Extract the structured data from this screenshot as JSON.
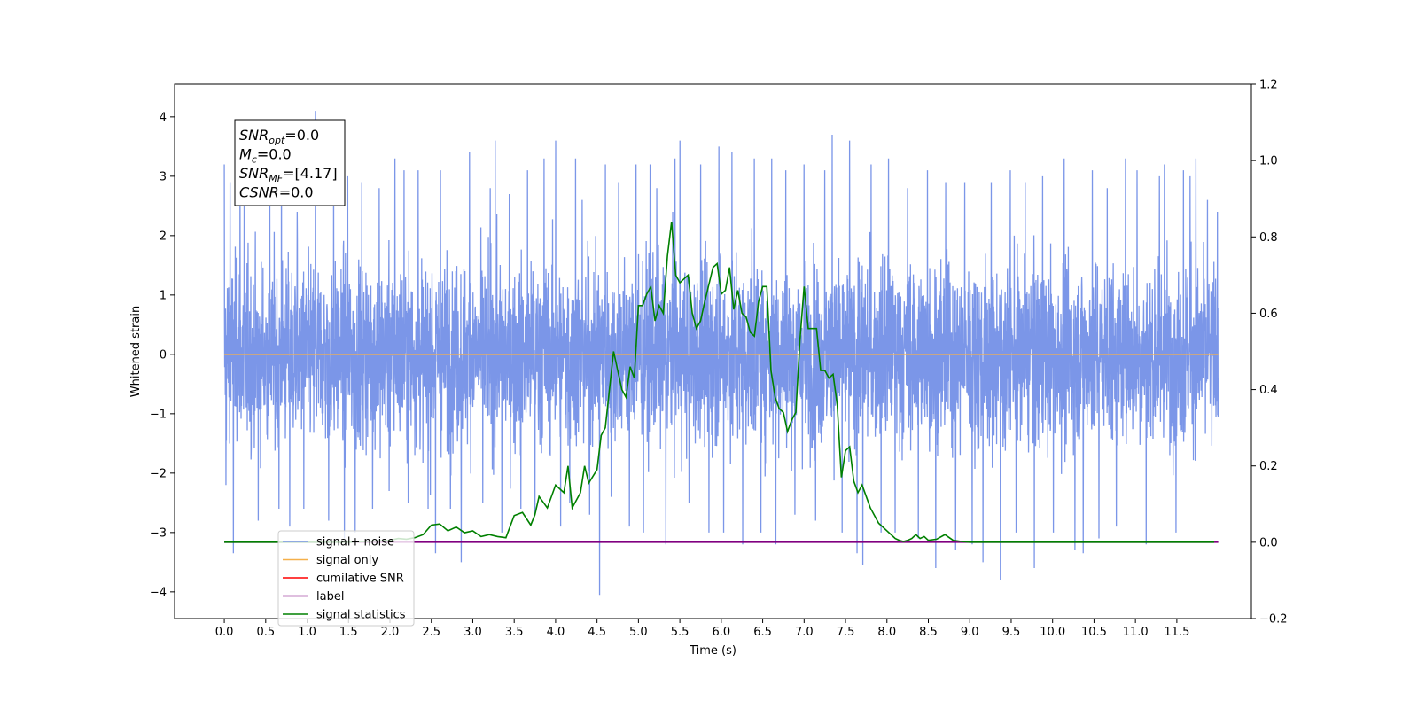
{
  "chart_data": {
    "type": "line",
    "xlabel": "Time (s)",
    "ylabel": "Whitened strain",
    "xlim": [
      -0.6,
      12.4
    ],
    "ylim": [
      -4.45,
      4.55
    ],
    "ylim_right": [
      -0.2,
      1.2
    ],
    "x_ticks": [
      0.0,
      0.5,
      1.0,
      1.5,
      2.0,
      2.5,
      3.0,
      3.5,
      4.0,
      4.5,
      5.0,
      5.5,
      6.0,
      6.5,
      7.0,
      7.5,
      8.0,
      8.5,
      9.0,
      9.5,
      10.0,
      10.5,
      11.0,
      11.5
    ],
    "x_tick_labels": [
      "0.0",
      "0.5",
      "1.0",
      "1.5",
      "2.0",
      "2.5",
      "3.0",
      "3.5",
      "4.0",
      "4.5",
      "5.0",
      "5.5",
      "6.0",
      "6.5",
      "7.0",
      "7.5",
      "8.0",
      "8.5",
      "9.0",
      "9.5",
      "10.0",
      "10.5",
      "11.0",
      "11.5"
    ],
    "y_ticks": [
      4,
      3,
      2,
      1,
      0,
      -1,
      -2,
      -3,
      -4
    ],
    "y_tick_labels": [
      "4",
      "3",
      "2",
      "1",
      "0",
      "−1",
      "−2",
      "−3",
      "−4"
    ],
    "y_ticks_right": [
      1.2,
      1.0,
      0.8,
      0.6,
      0.4,
      0.2,
      0.0,
      -0.2
    ],
    "y_tick_labels_right": [
      "1.2",
      "1.0",
      "0.8",
      "0.6",
      "0.4",
      "0.2",
      "0.0",
      "−0.2"
    ],
    "grid": false,
    "legend_position": "lower-left",
    "annotation": {
      "lines": [
        {
          "sym": "SNR",
          "sub": "opt",
          "value": "=0.0"
        },
        {
          "sym": "M",
          "sub": "c",
          "value": "=0.0"
        },
        {
          "sym": "SNR",
          "sub": "MF",
          "value": "=[4.17]"
        },
        {
          "sym": "CSNR",
          "sub": "",
          "value": "=0.0"
        }
      ]
    },
    "series": [
      {
        "name": "signal+ noise",
        "color": "#7b96e8",
        "axis": "left",
        "x_range": [
          0.0,
          12.0
        ],
        "noise_sigma": 1.0,
        "peaks_x": [
          0.0,
          0.02,
          0.07,
          0.11,
          0.19,
          0.24,
          0.41,
          0.55,
          0.66,
          0.69,
          0.79,
          0.88,
          0.96,
          1.1,
          1.26,
          1.32,
          1.45,
          1.49,
          1.58,
          1.66,
          1.79,
          1.87,
          1.99,
          2.06,
          2.17,
          2.22,
          2.34,
          2.46,
          2.55,
          2.61,
          2.73,
          2.86,
          2.96,
          3.12,
          3.21,
          3.27,
          3.35,
          3.44,
          3.58,
          3.66,
          3.75,
          3.86,
          4.0,
          4.06,
          4.17,
          4.24,
          4.32,
          4.41,
          4.53,
          4.6,
          4.67,
          4.76,
          4.89,
          4.97,
          5.06,
          5.14,
          5.22,
          5.33,
          5.44,
          5.5,
          5.61,
          5.75,
          5.85,
          5.97,
          6.03,
          6.13,
          6.26,
          6.4,
          6.48,
          6.61,
          6.66,
          6.78,
          6.89,
          7.0,
          7.14,
          7.25,
          7.34,
          7.46,
          7.55,
          7.64,
          7.71,
          7.81,
          7.93,
          8.02,
          8.1,
          8.25,
          8.38,
          8.49,
          8.59,
          8.71,
          8.83,
          8.94,
          9.03,
          9.16,
          9.26,
          9.37,
          9.49,
          9.56,
          9.67,
          9.78,
          9.88,
          10.01,
          10.14,
          10.27,
          10.37,
          10.48,
          10.56,
          10.66,
          10.77,
          10.88,
          11.02,
          11.13,
          11.29,
          11.35,
          11.49,
          11.58,
          11.66,
          11.73,
          11.87,
          11.99
        ],
        "peaks_y": [
          3.2,
          -2.2,
          2.9,
          -3.35,
          3.2,
          2.7,
          -2.8,
          2.5,
          -2.6,
          3.6,
          -2.9,
          2.4,
          -2.6,
          4.1,
          -2.8,
          3.1,
          -3.1,
          3.0,
          -3.0,
          2.9,
          -2.6,
          2.8,
          -2.3,
          3.3,
          3.1,
          -2.5,
          3.1,
          -2.6,
          -3.35,
          3.1,
          -2.6,
          -3.5,
          3.4,
          -2.5,
          2.8,
          3.6,
          -3.0,
          2.7,
          -2.6,
          3.1,
          -2.7,
          3.3,
          3.6,
          -2.9,
          -2.5,
          3.3,
          2.6,
          -2.7,
          -4.05,
          3.2,
          -2.4,
          2.9,
          -2.9,
          3.2,
          -3.0,
          3.2,
          2.8,
          -3.2,
          3.3,
          3.6,
          -2.5,
          3.2,
          -3.0,
          3.5,
          -3.0,
          3.4,
          -3.2,
          3.3,
          -3.0,
          3.3,
          -3.2,
          3.1,
          -2.7,
          3.2,
          -2.8,
          3.1,
          3.7,
          -3.0,
          3.6,
          -3.35,
          -3.55,
          3.2,
          -3.0,
          3.3,
          -3.0,
          2.8,
          -3.1,
          3.1,
          -3.6,
          2.9,
          -3.3,
          2.9,
          -3.2,
          -3.5,
          2.9,
          -3.8,
          3.1,
          -3.0,
          2.9,
          -3.6,
          3.0,
          -3.0,
          3.3,
          -3.3,
          -3.35,
          3.1,
          -3.1,
          2.8,
          -2.9,
          3.3,
          3.1,
          -3.2,
          3.0,
          3.2,
          -3.0,
          3.1,
          3.0,
          3.3,
          2.6,
          2.4
        ]
      },
      {
        "name": "signal only",
        "color": "#f5b04a",
        "axis": "left",
        "x": [
          0.0,
          12.0
        ],
        "y": [
          0.0,
          0.0
        ]
      },
      {
        "name": "cumilative SNR",
        "color": "#ff0000",
        "axis": "right",
        "x": [],
        "y": []
      },
      {
        "name": "label",
        "color": "#800080",
        "axis": "right",
        "x": [
          0.0,
          12.0
        ],
        "y": [
          0.0,
          0.0
        ]
      },
      {
        "name": "signal statistics",
        "color": "#008000",
        "axis": "right",
        "x": [
          0.0,
          0.5,
          1.0,
          1.5,
          2.0,
          2.1,
          2.2,
          2.3,
          2.4,
          2.5,
          2.6,
          2.7,
          2.8,
          2.9,
          3.0,
          3.1,
          3.2,
          3.3,
          3.4,
          3.5,
          3.6,
          3.7,
          3.75,
          3.8,
          3.9,
          4.0,
          4.1,
          4.15,
          4.2,
          4.3,
          4.35,
          4.4,
          4.5,
          4.55,
          4.6,
          4.65,
          4.7,
          4.8,
          4.85,
          4.9,
          4.95,
          5.0,
          5.05,
          5.1,
          5.15,
          5.2,
          5.25,
          5.3,
          5.35,
          5.4,
          5.45,
          5.5,
          5.55,
          5.6,
          5.65,
          5.7,
          5.75,
          5.8,
          5.9,
          5.95,
          6.0,
          6.05,
          6.1,
          6.15,
          6.2,
          6.25,
          6.3,
          6.35,
          6.4,
          6.45,
          6.5,
          6.55,
          6.6,
          6.65,
          6.7,
          6.75,
          6.8,
          6.85,
          6.9,
          6.95,
          7.0,
          7.05,
          7.1,
          7.15,
          7.2,
          7.25,
          7.3,
          7.35,
          7.4,
          7.45,
          7.5,
          7.55,
          7.6,
          7.65,
          7.7,
          7.75,
          7.8,
          7.85,
          7.9,
          7.95,
          8.0,
          8.05,
          8.1,
          8.15,
          8.2,
          8.25,
          8.3,
          8.35,
          8.4,
          8.45,
          8.5,
          8.6,
          8.7,
          8.8,
          8.9,
          9.0,
          9.1,
          9.2,
          9.3,
          9.4,
          9.5,
          9.55,
          9.6,
          9.7,
          9.8,
          9.9,
          10.0,
          10.05,
          10.1,
          10.2,
          10.3,
          10.5,
          11.0,
          11.5,
          11.95
        ],
        "y": [
          0.0,
          0.0,
          0.0,
          0.0,
          0.005,
          0.01,
          0.008,
          0.012,
          0.02,
          0.045,
          0.048,
          0.03,
          0.04,
          0.025,
          0.03,
          0.015,
          0.02,
          0.015,
          0.012,
          0.07,
          0.078,
          0.045,
          0.072,
          0.12,
          0.09,
          0.15,
          0.13,
          0.2,
          0.09,
          0.13,
          0.2,
          0.155,
          0.19,
          0.28,
          0.3,
          0.4,
          0.5,
          0.4,
          0.38,
          0.46,
          0.43,
          0.62,
          0.62,
          0.65,
          0.67,
          0.58,
          0.62,
          0.6,
          0.75,
          0.84,
          0.7,
          0.68,
          0.69,
          0.7,
          0.6,
          0.56,
          0.58,
          0.63,
          0.72,
          0.73,
          0.65,
          0.66,
          0.72,
          0.61,
          0.66,
          0.6,
          0.59,
          0.55,
          0.54,
          0.63,
          0.67,
          0.67,
          0.45,
          0.38,
          0.35,
          0.34,
          0.29,
          0.32,
          0.34,
          0.53,
          0.67,
          0.56,
          0.56,
          0.56,
          0.45,
          0.45,
          0.43,
          0.44,
          0.36,
          0.17,
          0.24,
          0.25,
          0.16,
          0.13,
          0.15,
          0.12,
          0.09,
          0.07,
          0.05,
          0.04,
          0.03,
          0.02,
          0.01,
          0.005,
          0.002,
          0.005,
          0.01,
          0.02,
          0.01,
          0.015,
          0.005,
          0.008,
          0.02,
          0.005,
          0.002,
          0.0,
          0.0,
          0.0,
          0.0,
          0.0,
          0.0,
          0.0,
          0.0,
          0.0,
          0.0,
          0.0,
          0.0,
          0.0,
          0.0,
          0.0,
          0.0,
          0.0,
          0.0,
          0.0,
          0.0
        ]
      }
    ]
  }
}
